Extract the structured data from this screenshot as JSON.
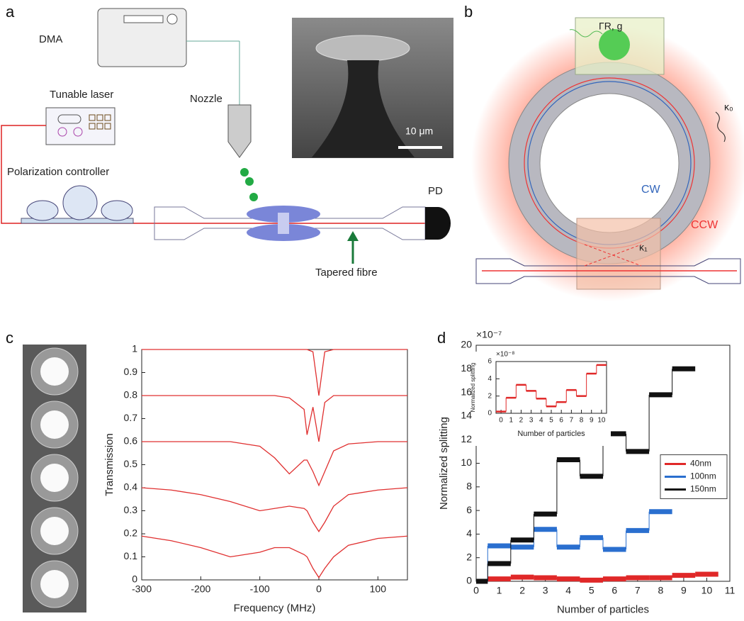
{
  "panels": {
    "a": "a",
    "b": "b",
    "c": "c",
    "d": "d"
  },
  "diagram_a": {
    "dma": "DMA",
    "laser": "Tunable laser",
    "nozzle": "Nozzle",
    "polarization": "Polarization controller",
    "pd": "PD",
    "fibre": "Tapered fibre",
    "scale_bar": "10 μm"
  },
  "diagram_b": {
    "gamma": "ΓR, g",
    "kappa0": "κ₀",
    "cw": "CW",
    "ccw": "CCW",
    "kappa1": "κ₁"
  },
  "chart_data": [
    {
      "type": "line",
      "xlabel": "Frequency (MHz)",
      "ylabel": "Transmission",
      "color": "#e03030",
      "x": [
        -300,
        -250,
        -200,
        -150,
        -100,
        -75,
        -50,
        -25,
        -20,
        -10,
        0,
        10,
        25,
        50,
        100,
        150
      ],
      "series": [
        {
          "values": [
            1,
            1,
            1,
            1,
            1,
            1,
            1,
            1,
            1,
            0.99,
            0.8,
            0.99,
            1,
            1,
            1,
            1
          ]
        },
        {
          "values": [
            0.8,
            0.8,
            0.8,
            0.8,
            0.8,
            0.8,
            0.79,
            0.74,
            0.63,
            0.75,
            0.6,
            0.77,
            0.8,
            0.8,
            0.8,
            0.8
          ]
        },
        {
          "values": [
            0.6,
            0.6,
            0.6,
            0.6,
            0.58,
            0.53,
            0.46,
            0.52,
            0.52,
            0.47,
            0.41,
            0.47,
            0.56,
            0.59,
            0.6,
            0.6
          ]
        },
        {
          "values": [
            0.4,
            0.39,
            0.37,
            0.34,
            0.3,
            0.31,
            0.32,
            0.31,
            0.3,
            0.25,
            0.21,
            0.25,
            0.32,
            0.37,
            0.39,
            0.4
          ]
        },
        {
          "values": [
            0.19,
            0.17,
            0.14,
            0.1,
            0.12,
            0.14,
            0.14,
            0.11,
            0.1,
            0.05,
            0.01,
            0.05,
            0.1,
            0.15,
            0.18,
            0.19
          ]
        }
      ],
      "xlim": [
        -300,
        150
      ],
      "xticks": [
        -300,
        -200,
        -100,
        0,
        100
      ],
      "ylim": [
        0,
        1
      ],
      "yticks": [
        0,
        0.1,
        0.2,
        0.3,
        0.4,
        0.5,
        0.6,
        0.7,
        0.8,
        0.9,
        1
      ]
    },
    {
      "type": "step",
      "xlabel": "Number of particles",
      "ylabel": "Normalized splitting",
      "y_multiplier": "×10⁻⁷",
      "legend": "center right",
      "x": [
        0,
        1,
        2,
        3,
        4,
        5,
        6,
        7,
        8,
        9,
        10
      ],
      "series": [
        {
          "name": "40nm",
          "color": "#e02828",
          "values": [
            0,
            0.2,
            0.35,
            0.3,
            0.2,
            0.1,
            0.2,
            0.3,
            0.3,
            0.5,
            0.6
          ]
        },
        {
          "name": "100nm",
          "color": "#2a6fcf",
          "values": [
            0,
            3.0,
            2.9,
            4.4,
            2.9,
            3.7,
            2.7,
            4.3,
            5.9,
            null,
            null
          ]
        },
        {
          "name": "150nm",
          "color": "#111111",
          "values": [
            0,
            1.5,
            3.5,
            5.7,
            10.3,
            8.9,
            12.5,
            11,
            15.8,
            18,
            null
          ]
        }
      ],
      "xlim": [
        0,
        11
      ],
      "xticks": [
        0,
        1,
        2,
        3,
        4,
        5,
        6,
        7,
        8,
        9,
        10,
        11
      ],
      "ylim": [
        0,
        20
      ],
      "yticks": [
        0,
        2,
        4,
        6,
        8,
        10,
        12,
        14,
        16,
        18,
        20
      ]
    },
    {
      "type": "step",
      "xlabel": "Number of particles",
      "ylabel": "Normalized splitting",
      "y_multiplier": "×10⁻⁸",
      "x": [
        0,
        1,
        2,
        3,
        4,
        5,
        6,
        7,
        8,
        9,
        10
      ],
      "series": [
        {
          "color": "#e02828",
          "values": [
            0.2,
            1.8,
            3.3,
            2.6,
            1.7,
            0.8,
            1.3,
            2.7,
            2.0,
            4.6,
            5.6
          ]
        }
      ],
      "xlim": [
        -0.5,
        10.5
      ],
      "xticks": [
        0,
        1,
        2,
        3,
        4,
        5,
        6,
        7,
        8,
        9,
        10
      ],
      "ylim": [
        0,
        6
      ],
      "yticks": [
        0,
        2,
        4,
        6
      ]
    }
  ]
}
